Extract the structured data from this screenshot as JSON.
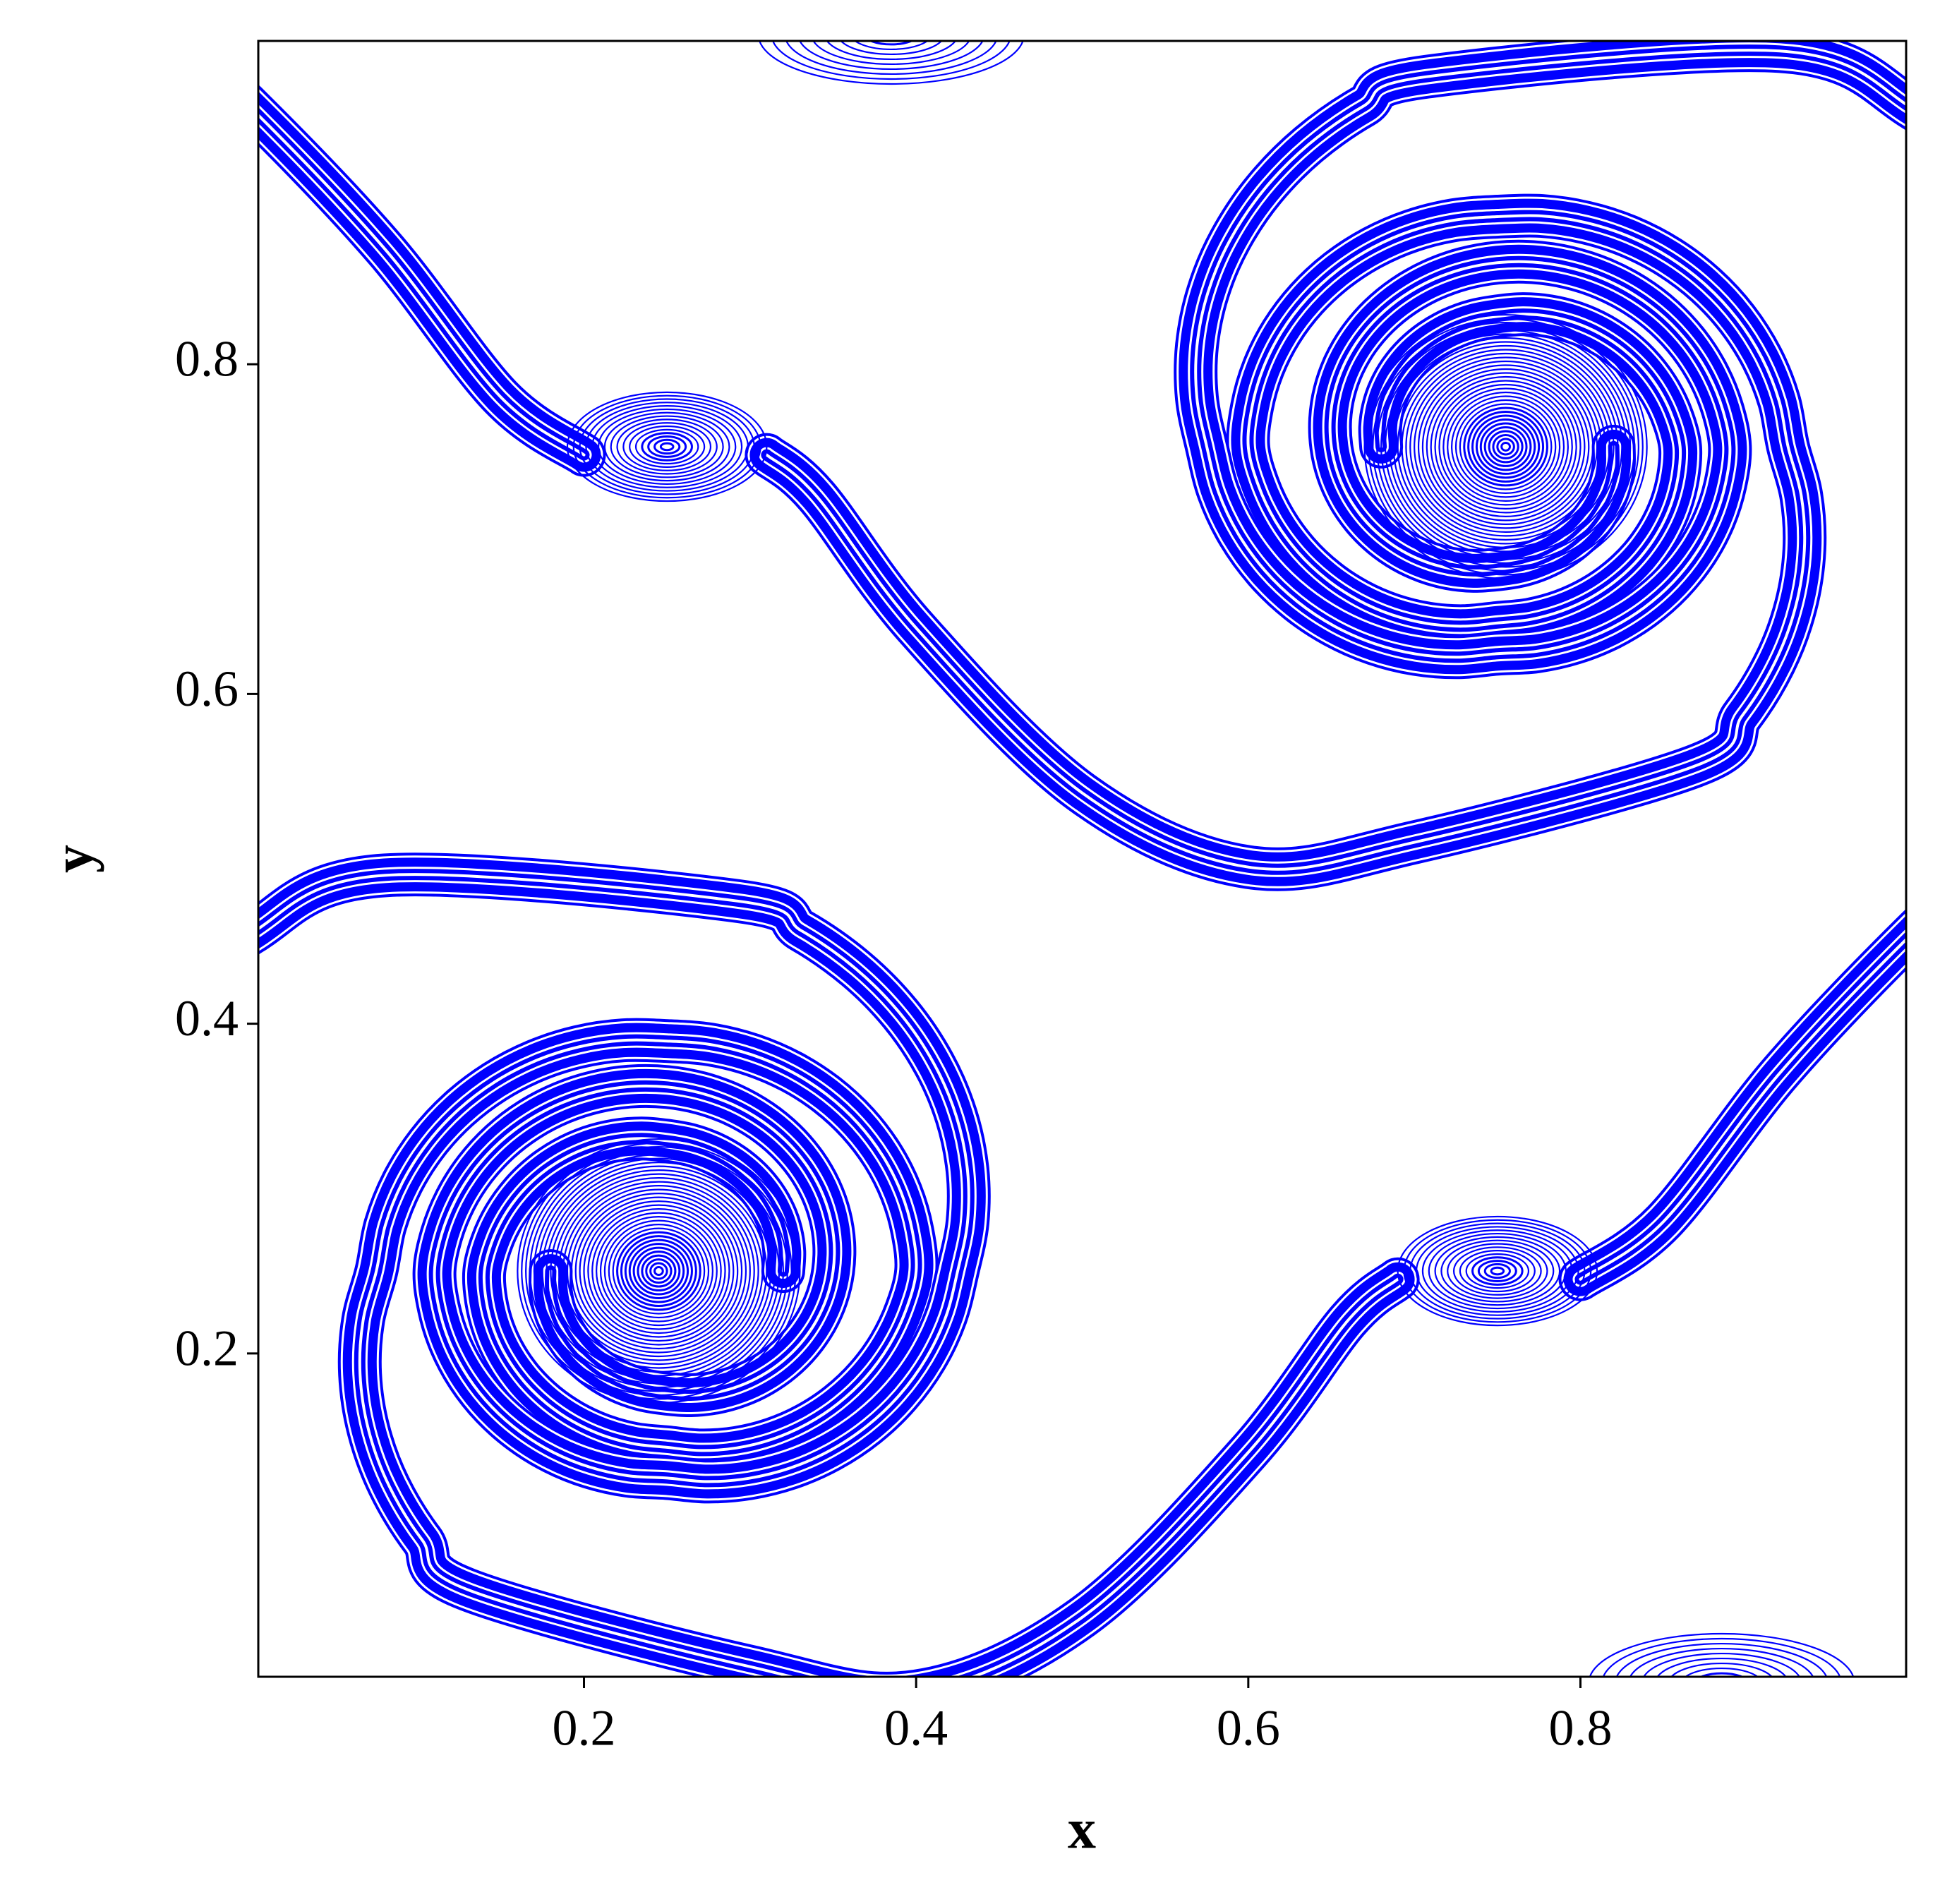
{
  "chart_data": {
    "type": "contour",
    "xlabel": "x",
    "ylabel": "y",
    "color": "#0000ff",
    "xlim": [
      0.0039,
      0.9961
    ],
    "ylim": [
      0.0039,
      0.9961
    ],
    "xticks": [
      0.2,
      0.4,
      0.6,
      0.8
    ],
    "yticks": [
      0.2,
      0.4,
      0.6,
      0.8
    ]
  }
}
